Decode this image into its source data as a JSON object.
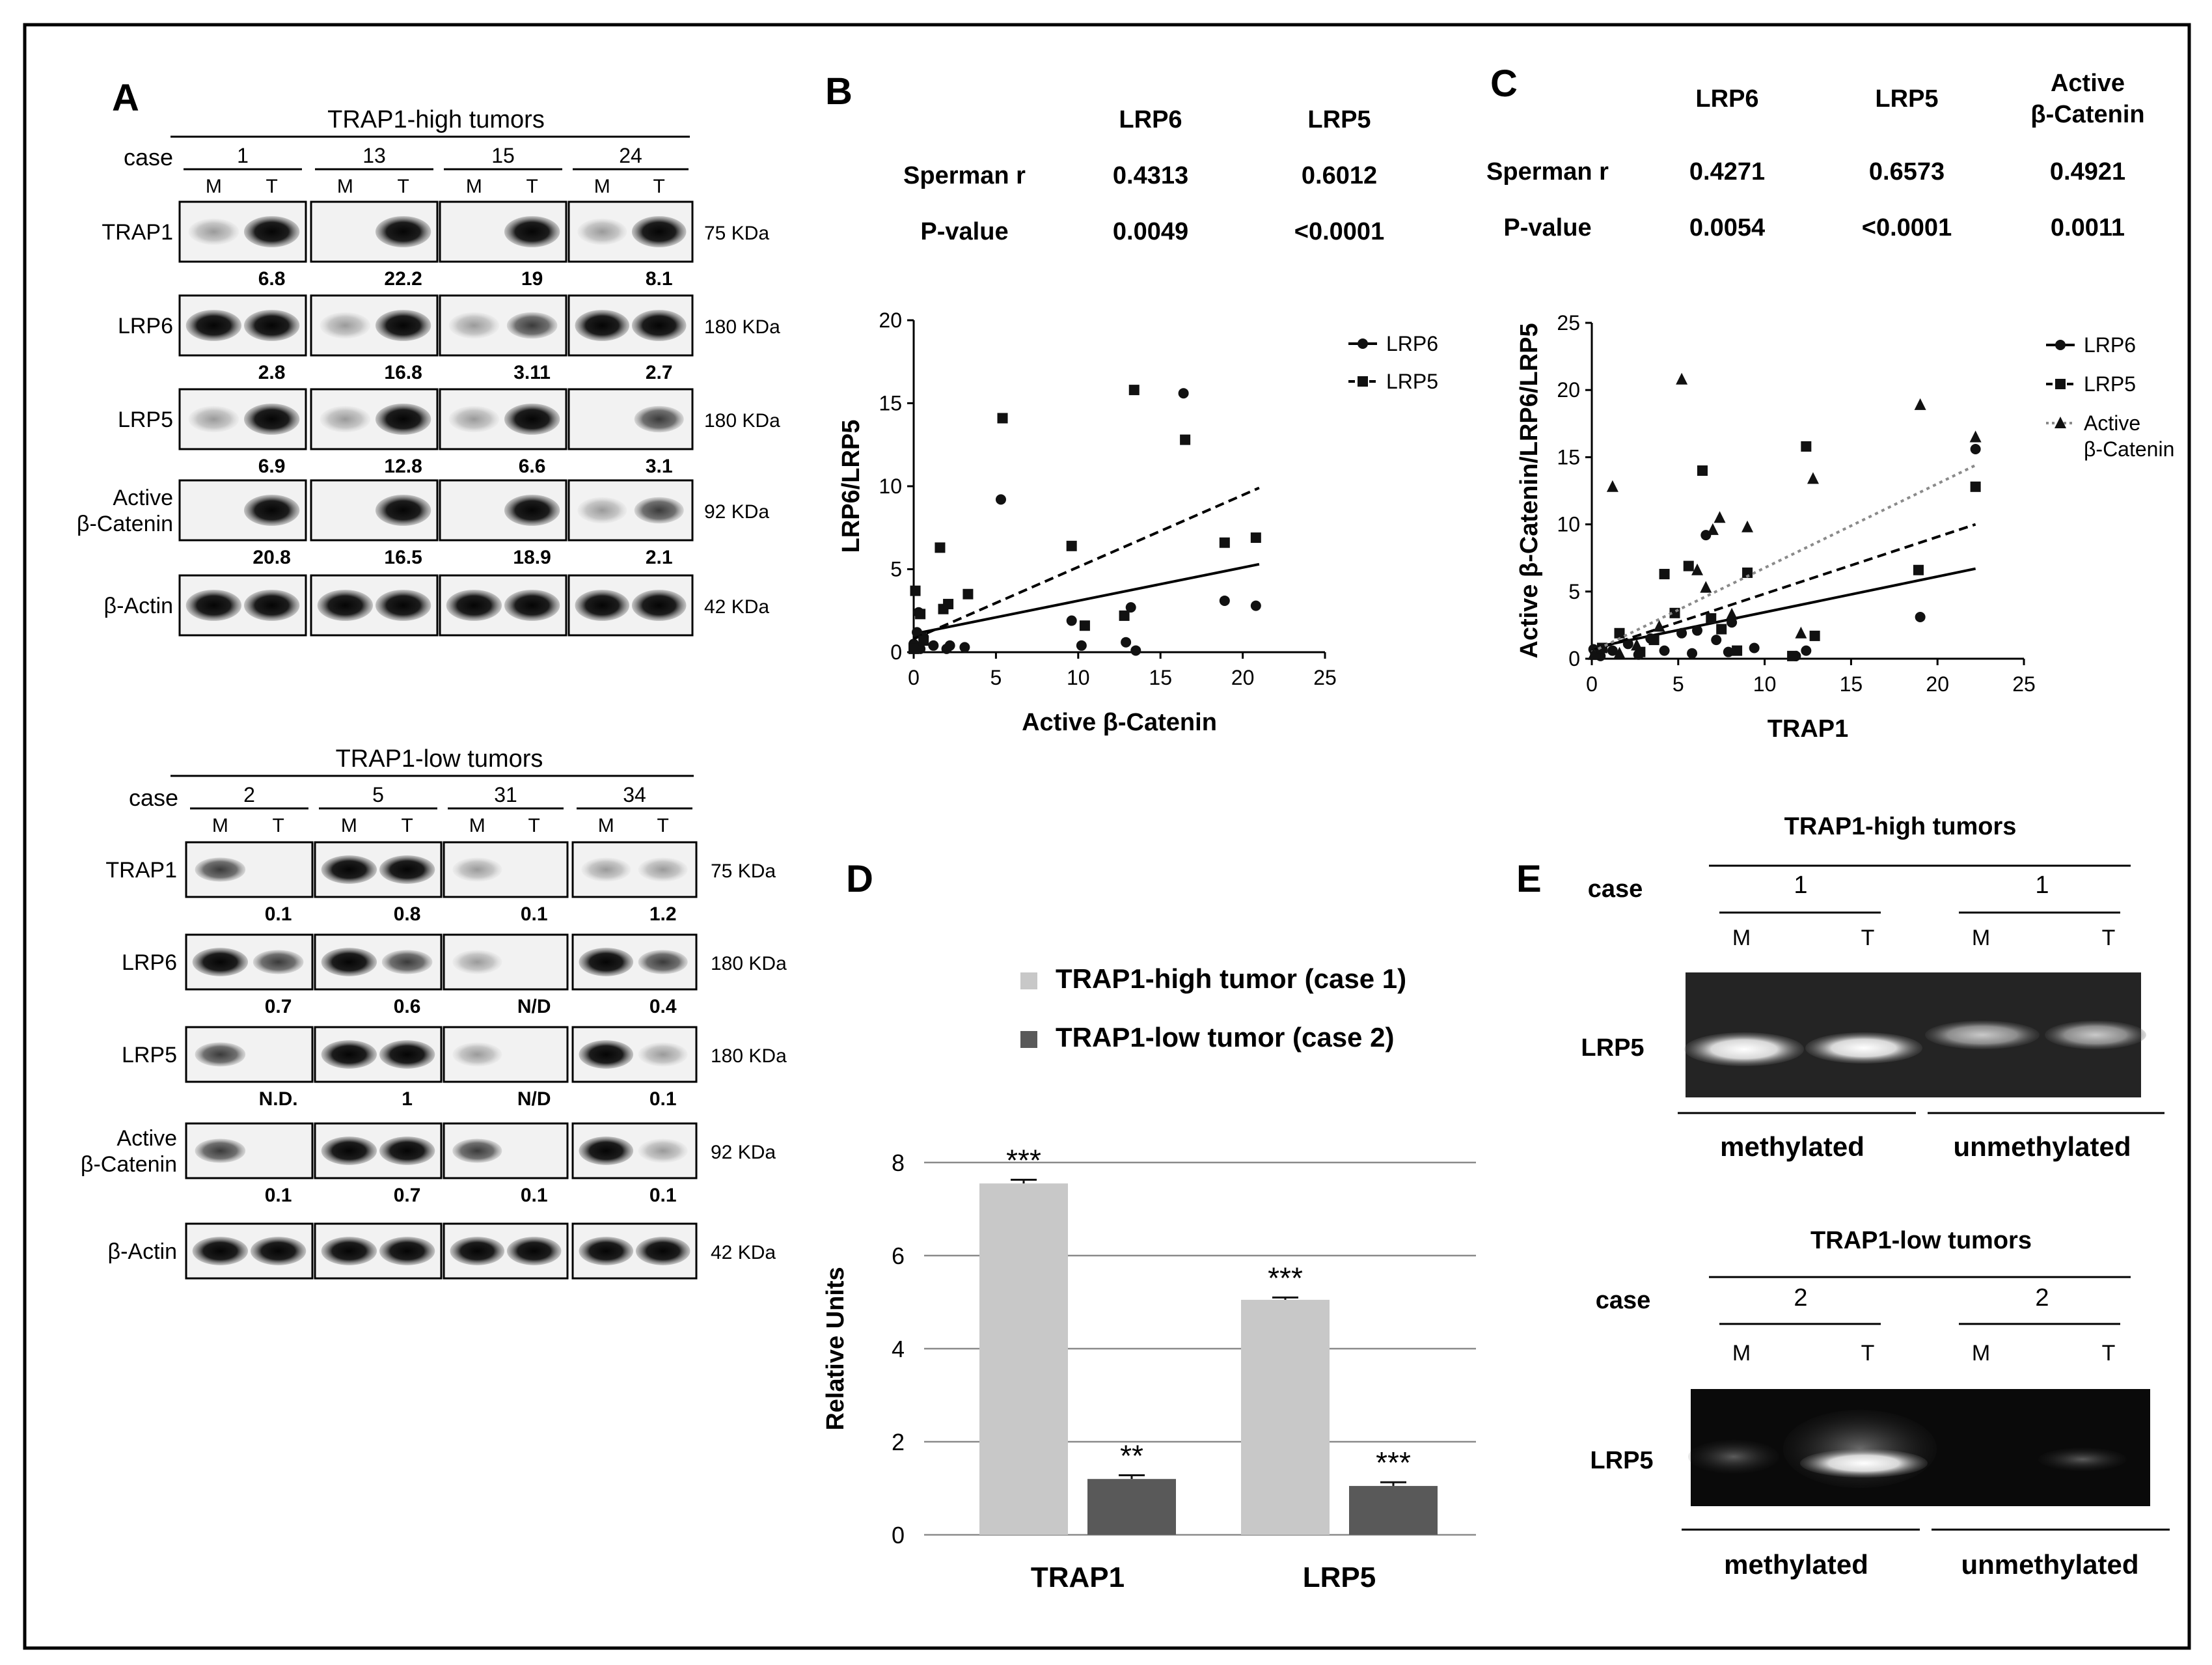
{
  "panel_letters": {
    "a": "A",
    "b": "B",
    "c": "C",
    "d": "D",
    "e": "E"
  },
  "panel_a": {
    "high": {
      "title": "TRAP1-high tumors",
      "case_label": "case",
      "cases": [
        "1",
        "13",
        "15",
        "24"
      ],
      "lane_labels": [
        "M",
        "T"
      ],
      "rows": [
        {
          "name": "TRAP1",
          "size": "75 KDa",
          "values": [
            "6.8",
            "22.2",
            "19",
            "8.1"
          ]
        },
        {
          "name": "LRP6",
          "size": "180 KDa",
          "values": [
            "2.8",
            "16.8",
            "3.11",
            "2.7"
          ]
        },
        {
          "name": "LRP5",
          "size": "180 KDa",
          "values": [
            "6.9",
            "12.8",
            "6.6",
            "3.1"
          ]
        },
        {
          "name_line1": "Active",
          "name_line2": "β-Catenin",
          "size": "92 KDa",
          "values": [
            "20.8",
            "16.5",
            "18.9",
            "2.1"
          ]
        },
        {
          "name": "β-Actin",
          "size": "42 KDa",
          "values": []
        }
      ]
    },
    "low": {
      "title": "TRAP1-low tumors",
      "case_label": "case",
      "cases": [
        "2",
        "5",
        "31",
        "34"
      ],
      "lane_labels": [
        "M",
        "T"
      ],
      "rows": [
        {
          "name": "TRAP1",
          "size": "75 KDa",
          "values": [
            "0.1",
            "0.8",
            "0.1",
            "1.2"
          ]
        },
        {
          "name": "LRP6",
          "size": "180 KDa",
          "values": [
            "0.7",
            "0.6",
            "N/D",
            "0.4"
          ]
        },
        {
          "name": "LRP5",
          "size": "180 KDa",
          "values": [
            "N.D.",
            "1",
            "N/D",
            "0.1"
          ]
        },
        {
          "name_line1": "Active",
          "name_line2": "β-Catenin",
          "size": "92 KDa",
          "values": [
            "0.1",
            "0.7",
            "0.1",
            "0.1"
          ]
        },
        {
          "name": "β-Actin",
          "size": "42 KDa",
          "values": []
        }
      ]
    }
  },
  "panel_b": {
    "stats": {
      "col1": "LRP6",
      "col2": "LRP5",
      "row1": "Sperman r",
      "row2": "P-value",
      "r_lrp6": "0.4313",
      "r_lrp5": "0.6012",
      "p_lrp6": "0.0049",
      "p_lrp5": "<0.0001"
    }
  },
  "panel_c": {
    "stats": {
      "col1": "LRP6",
      "col2": "LRP5",
      "col3_line1": "Active",
      "col3_line2": "β-Catenin",
      "row1": "Sperman r",
      "row2": "P-value",
      "r_lrp6": "0.4271",
      "r_lrp5": "0.6573",
      "r_bcat": "0.4921",
      "p_lrp6": "0.0054",
      "p_lrp5": "<0.0001",
      "p_bcat": "0.0011"
    }
  },
  "panel_e": {
    "high_title": "TRAP1-high  tumors",
    "low_title": "TRAP1-low tumors",
    "case_label": "case",
    "high_case": "1",
    "low_case": "2",
    "lane_labels": [
      "M",
      "T"
    ],
    "row_label": "LRP5",
    "methylated": "methylated",
    "unmethylated": "unmethylated"
  },
  "chart_data": [
    {
      "id": "B",
      "type": "scatter",
      "xlabel": "Active β-Catenin",
      "ylabel": "LRP6/LRP5",
      "xlim": [
        0,
        25
      ],
      "ylim": [
        0,
        20
      ],
      "xticks": [
        0,
        5,
        10,
        15,
        20,
        25
      ],
      "yticks": [
        0,
        5,
        10,
        15,
        20
      ],
      "legend_position": "top-right",
      "series": [
        {
          "name": "LRP6",
          "marker": "circle",
          "line": "solid",
          "fit": [
            [
              0,
              1.1
            ],
            [
              21,
              5.3
            ]
          ],
          "points": [
            [
              0,
              0.5
            ],
            [
              0.2,
              1.2
            ],
            [
              0.3,
              2.4
            ],
            [
              0.4,
              0.2
            ],
            [
              0.6,
              0.9
            ],
            [
              1.2,
              0.4
            ],
            [
              2,
              0.2
            ],
            [
              2.2,
              0.4
            ],
            [
              3.1,
              0.3
            ],
            [
              5.3,
              9.2
            ],
            [
              9.6,
              1.9
            ],
            [
              10.2,
              0.4
            ],
            [
              12.9,
              0.6
            ],
            [
              13.2,
              2.7
            ],
            [
              13.5,
              0.1
            ],
            [
              16.4,
              15.6
            ],
            [
              18.9,
              3.1
            ],
            [
              20.8,
              2.8
            ]
          ]
        },
        {
          "name": "LRP5",
          "marker": "square",
          "line": "dashed",
          "fit": [
            [
              0,
              0.8
            ],
            [
              21,
              9.9
            ]
          ],
          "points": [
            [
              0,
              0.2
            ],
            [
              0.1,
              3.7
            ],
            [
              0.4,
              2.3
            ],
            [
              0.6,
              0.7
            ],
            [
              1.6,
              6.3
            ],
            [
              1.8,
              2.6
            ],
            [
              2.1,
              2.9
            ],
            [
              3.3,
              3.5
            ],
            [
              5.4,
              14.1
            ],
            [
              9.6,
              6.4
            ],
            [
              10.4,
              1.6
            ],
            [
              12.8,
              2.2
            ],
            [
              13.4,
              15.8
            ],
            [
              16.5,
              12.8
            ],
            [
              18.9,
              6.6
            ],
            [
              20.8,
              6.9
            ]
          ]
        }
      ]
    },
    {
      "id": "C",
      "type": "scatter",
      "xlabel": "TRAP1",
      "ylabel": "Active β-Catenin/LRP6/LRP5",
      "xlim": [
        0,
        25
      ],
      "ylim": [
        0,
        25
      ],
      "xticks": [
        0,
        5,
        10,
        15,
        20,
        25
      ],
      "yticks": [
        0,
        5,
        10,
        15,
        20,
        25
      ],
      "legend_position": "top-right",
      "series": [
        {
          "name": "LRP6",
          "marker": "circle",
          "line": "solid",
          "fit": [
            [
              0,
              0.8
            ],
            [
              22.2,
              6.7
            ]
          ],
          "points": [
            [
              0.1,
              0.7
            ],
            [
              0.3,
              0.4
            ],
            [
              0.5,
              0.2
            ],
            [
              1.2,
              0.6
            ],
            [
              2.1,
              1.1
            ],
            [
              2.7,
              0.3
            ],
            [
              3.4,
              1.5
            ],
            [
              4.2,
              0.6
            ],
            [
              5.2,
              1.9
            ],
            [
              5.8,
              0.4
            ],
            [
              6.1,
              2.1
            ],
            [
              6.6,
              9.2
            ],
            [
              7.2,
              1.4
            ],
            [
              7.9,
              0.5
            ],
            [
              8.1,
              2.7
            ],
            [
              9.4,
              0.8
            ],
            [
              11.8,
              0.2
            ],
            [
              12.4,
              0.6
            ],
            [
              19,
              3.1
            ],
            [
              22.2,
              15.6
            ]
          ]
        },
        {
          "name": "LRP5",
          "marker": "square",
          "line": "dashed",
          "fit": [
            [
              0,
              0.6
            ],
            [
              22.2,
              10
            ]
          ],
          "points": [
            [
              0.2,
              0.3
            ],
            [
              0.6,
              0.8
            ],
            [
              1.6,
              1.9
            ],
            [
              2.8,
              0.5
            ],
            [
              3.6,
              1.4
            ],
            [
              4.2,
              6.3
            ],
            [
              4.8,
              3.4
            ],
            [
              5.6,
              6.9
            ],
            [
              6.4,
              14
            ],
            [
              6.9,
              3
            ],
            [
              7.5,
              2.2
            ],
            [
              8.4,
              0.6
            ],
            [
              9,
              6.4
            ],
            [
              11.6,
              0.2
            ],
            [
              12.4,
              15.8
            ],
            [
              12.9,
              1.7
            ],
            [
              18.9,
              6.6
            ],
            [
              22.2,
              12.8
            ]
          ]
        },
        {
          "name_line1": "Active",
          "name_line2": "β-Catenin",
          "marker": "triangle",
          "line": "dotted",
          "fit": [
            [
              0,
              0.5
            ],
            [
              22.2,
              14.4
            ]
          ],
          "points": [
            [
              0.1,
              0.3
            ],
            [
              1.2,
              12.8
            ],
            [
              1.6,
              0.4
            ],
            [
              2.6,
              1
            ],
            [
              3.9,
              2.4
            ],
            [
              5.2,
              20.8
            ],
            [
              6.1,
              6.6
            ],
            [
              6.6,
              5.3
            ],
            [
              7,
              9.6
            ],
            [
              7.4,
              10.5
            ],
            [
              8.1,
              3.3
            ],
            [
              9,
              9.8
            ],
            [
              12.1,
              1.9
            ],
            [
              12.8,
              13.4
            ],
            [
              19,
              18.9
            ],
            [
              22.2,
              16.5
            ]
          ]
        }
      ]
    },
    {
      "id": "D",
      "type": "bar",
      "ylabel": "Relative Units",
      "ylim": [
        0,
        8
      ],
      "yticks": [
        0,
        2,
        4,
        6,
        8
      ],
      "categories": [
        "TRAP1",
        "LRP5"
      ],
      "series": [
        {
          "name": "TRAP1-high tumor (case 1)",
          "color": "#c8c8c8",
          "values": [
            7.55,
            5.05
          ],
          "errors": [
            0.08,
            0.05
          ],
          "annotations": [
            "***",
            "***"
          ]
        },
        {
          "name": "TRAP1-low tumor (case 2)",
          "color": "#595959",
          "values": [
            1.2,
            1.05
          ],
          "errors": [
            0.08,
            0.08
          ],
          "annotations": [
            "**",
            "***"
          ]
        }
      ],
      "legend_position": "top"
    }
  ]
}
